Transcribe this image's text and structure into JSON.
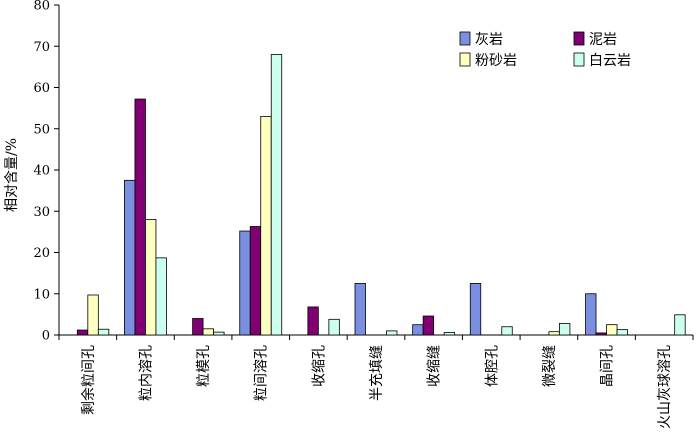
{
  "chart_data": {
    "type": "bar",
    "title": "",
    "xlabel": "",
    "ylabel": "相对含量/%",
    "ylim": [
      0,
      80
    ],
    "yticks": [
      0,
      10,
      20,
      30,
      40,
      50,
      60,
      70,
      80
    ],
    "grid": false,
    "legend_position": "top-right",
    "categories": [
      "剩余粒间孔",
      "粒内溶孔",
      "粒模孔",
      "粒间溶孔",
      "收缩孔",
      "半充填缝",
      "收缩缝",
      "体腔孔",
      "微裂缝",
      "晶间孔",
      "火山灰球溶孔"
    ],
    "series": [
      {
        "name": "灰岩",
        "color": "#7B8FE0",
        "values": [
          0,
          37.5,
          0,
          25.2,
          0,
          12.5,
          2.5,
          12.5,
          0,
          10,
          0
        ]
      },
      {
        "name": "泥岩",
        "color": "#800073",
        "values": [
          1.2,
          57.2,
          4,
          26.3,
          6.8,
          0,
          4.6,
          0,
          0,
          0.5,
          0
        ]
      },
      {
        "name": "粉砂岩",
        "color": "#FFFFBF",
        "values": [
          9.7,
          28,
          1.5,
          53,
          0,
          0,
          0,
          0,
          0.8,
          2.5,
          0
        ]
      },
      {
        "name": "白云岩",
        "color": "#CCFFEE",
        "values": [
          1.4,
          18.7,
          0.7,
          68,
          3.8,
          1,
          0.6,
          2,
          2.8,
          1.3,
          4.9
        ]
      }
    ]
  }
}
